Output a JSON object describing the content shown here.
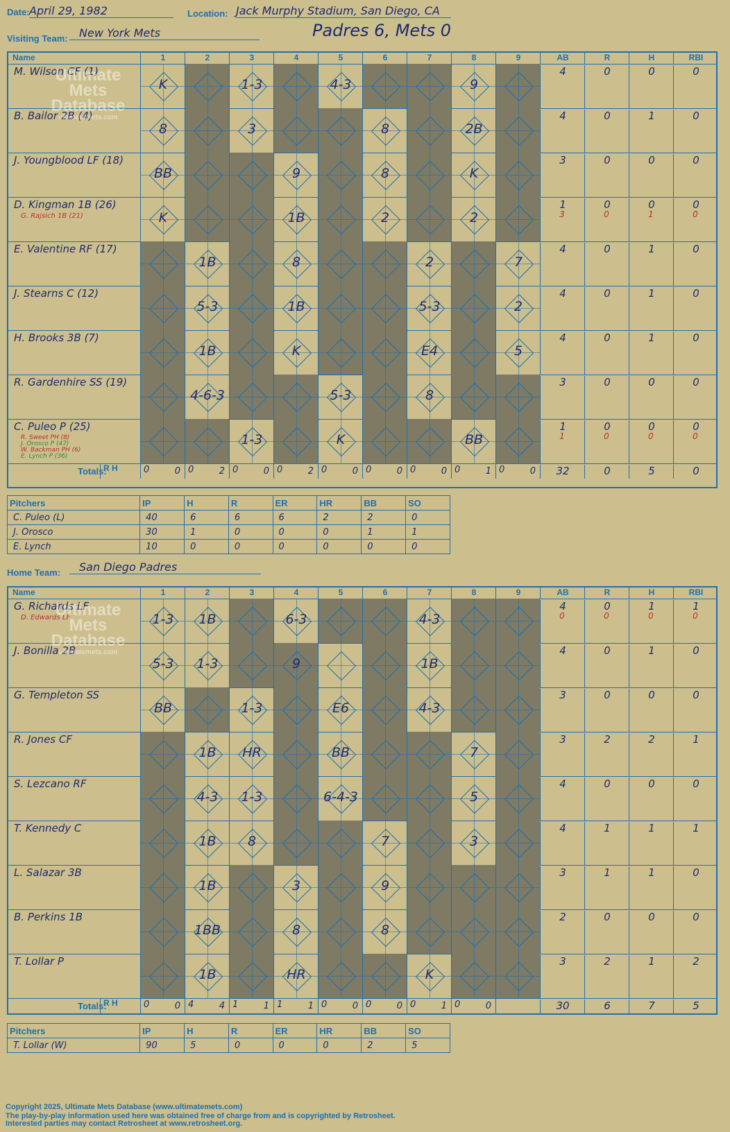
{
  "header": {
    "date_label": "Date:",
    "date": "April 29, 1982",
    "location_label": "Location:",
    "location": "Jack Murphy Stadium, San Diego, CA",
    "visiting_label": "Visiting Team:",
    "visiting_team": "New York Mets",
    "result": "Padres 6, Mets 0",
    "home_label": "Home Team:",
    "home_team": "San Diego Padres"
  },
  "columns": {
    "name": "Name",
    "innings": [
      "1",
      "2",
      "3",
      "4",
      "5",
      "6",
      "7",
      "8",
      "9"
    ],
    "stats": [
      "AB",
      "R",
      "H",
      "RBI"
    ],
    "totals": "Totals:",
    "r": "R",
    "h": "H"
  },
  "visitors": {
    "rows": [
      {
        "name": "M. Wilson CF (1)",
        "sub": "",
        "stats": [
          "4",
          "0",
          "0",
          "0"
        ],
        "substats": []
      },
      {
        "name": "B. Bailor 2B (4)",
        "sub": "",
        "stats": [
          "4",
          "0",
          "1",
          "0"
        ],
        "substats": []
      },
      {
        "name": "J. Youngblood LF (18)",
        "sub": "",
        "stats": [
          "3",
          "0",
          "0",
          "0"
        ],
        "substats": []
      },
      {
        "name": "D. Kingman 1B (26)",
        "sub": "G. Rajsich 1B (21)",
        "stats": [
          "1",
          "0",
          "0",
          "0"
        ],
        "substats": [
          "3",
          "0",
          "1",
          "0"
        ]
      },
      {
        "name": "E. Valentine RF (17)",
        "sub": "",
        "stats": [
          "4",
          "0",
          "1",
          "0"
        ],
        "substats": []
      },
      {
        "name": "J. Stearns C (12)",
        "sub": "",
        "stats": [
          "4",
          "0",
          "1",
          "0"
        ],
        "substats": []
      },
      {
        "name": "H. Brooks 3B (7)",
        "sub": "",
        "stats": [
          "4",
          "0",
          "1",
          "0"
        ],
        "substats": []
      },
      {
        "name": "R. Gardenhire SS (19)",
        "sub": "",
        "stats": [
          "3",
          "0",
          "0",
          "0"
        ],
        "substats": []
      },
      {
        "name": "C. Puleo P (25)",
        "sub": "R. Sweet PH (8) | J. Orosco P (47) | W. Backman PH (6) | E. Lynch P (36)",
        "stats": [
          "1",
          "0",
          "0",
          "0"
        ],
        "substats": [
          "1",
          "0",
          "0",
          "0"
        ]
      }
    ],
    "plays": [
      [
        "K",
        "",
        "1-3",
        "",
        "4-3",
        "",
        "",
        "9",
        ""
      ],
      [
        "8",
        "",
        "3",
        "",
        "",
        "8",
        "",
        "2B",
        ""
      ],
      [
        "BB",
        "",
        "",
        "9",
        "",
        "8",
        "",
        "K",
        ""
      ],
      [
        "K",
        "",
        "",
        "1B",
        "",
        "2",
        "",
        "2",
        ""
      ],
      [
        "",
        "1B",
        "",
        "8",
        "",
        "",
        "2",
        "",
        "7"
      ],
      [
        "",
        "5-3",
        "",
        "1B",
        "",
        "",
        "5-3",
        "",
        "2"
      ],
      [
        "",
        "1B",
        "",
        "K",
        "",
        "",
        "E4",
        "",
        "5"
      ],
      [
        "",
        "4-6-3",
        "",
        "",
        "5-3",
        "",
        "8",
        "",
        ""
      ],
      [
        "",
        "",
        "1-3",
        "",
        "K",
        "",
        "",
        "BB",
        ""
      ]
    ],
    "totals_rh": [
      [
        "0",
        "0"
      ],
      [
        "0",
        "2"
      ],
      [
        "0",
        "0"
      ],
      [
        "0",
        "2"
      ],
      [
        "0",
        "0"
      ],
      [
        "0",
        "0"
      ],
      [
        "0",
        "0"
      ],
      [
        "0",
        "1"
      ],
      [
        "0",
        "0"
      ]
    ],
    "totals_stats": [
      "32",
      "0",
      "5",
      "0"
    ],
    "pitchers": [
      {
        "name": "C. Puleo (L)",
        "ip": "40",
        "h": "6",
        "r": "6",
        "er": "6",
        "hr": "2",
        "bb": "2",
        "so": "0"
      },
      {
        "name": "J. Orosco",
        "ip": "30",
        "h": "1",
        "r": "0",
        "er": "0",
        "hr": "0",
        "bb": "1",
        "so": "1"
      },
      {
        "name": "E. Lynch",
        "ip": "10",
        "h": "0",
        "r": "0",
        "er": "0",
        "hr": "0",
        "bb": "0",
        "so": "0"
      }
    ]
  },
  "home": {
    "rows": [
      {
        "name": "G. Richards LF",
        "sub": "D. Edwards LF",
        "stats": [
          "4",
          "0",
          "1",
          "1"
        ],
        "substats": [
          "0",
          "0",
          "0",
          "0"
        ]
      },
      {
        "name": "J. Bonilla 2B",
        "sub": "",
        "stats": [
          "4",
          "0",
          "1",
          "0"
        ],
        "substats": []
      },
      {
        "name": "G. Templeton SS",
        "sub": "",
        "stats": [
          "3",
          "0",
          "0",
          "0"
        ],
        "substats": []
      },
      {
        "name": "R. Jones CF",
        "sub": "",
        "stats": [
          "3",
          "2",
          "2",
          "1"
        ],
        "substats": []
      },
      {
        "name": "S. Lezcano RF",
        "sub": "",
        "stats": [
          "4",
          "0",
          "0",
          "0"
        ],
        "substats": []
      },
      {
        "name": "T. Kennedy C",
        "sub": "",
        "stats": [
          "4",
          "1",
          "1",
          "1"
        ],
        "substats": []
      },
      {
        "name": "L. Salazar 3B",
        "sub": "",
        "stats": [
          "3",
          "1",
          "1",
          "0"
        ],
        "substats": []
      },
      {
        "name": "B. Perkins 1B",
        "sub": "",
        "stats": [
          "2",
          "0",
          "0",
          "0"
        ],
        "substats": []
      },
      {
        "name": "T. Lollar P",
        "sub": "",
        "stats": [
          "3",
          "2",
          "1",
          "2"
        ],
        "substats": []
      }
    ],
    "plays": [
      [
        "1-3",
        "1B",
        "",
        "6-3",
        "",
        "",
        "4-3",
        "",
        ""
      ],
      [
        "5-3",
        "1-3",
        "",
        "9",
        "",
        "",
        "1B",
        "",
        ""
      ],
      [
        "BB",
        "",
        "1-3",
        "",
        "E6",
        "",
        "4-3",
        "",
        ""
      ],
      [
        "",
        "1B",
        "HR",
        "",
        "BB",
        "",
        "",
        "7",
        ""
      ],
      [
        "",
        "4-3",
        "1-3",
        "",
        "6-4-3",
        "",
        "",
        "5",
        ""
      ],
      [
        "",
        "1B",
        "8",
        "",
        "",
        "7",
        "",
        "3",
        ""
      ],
      [
        "",
        "1B",
        "",
        "3",
        "",
        "9",
        "",
        "",
        ""
      ],
      [
        "",
        "1BB",
        "",
        "8",
        "",
        "8",
        "",
        "",
        ""
      ],
      [
        "",
        "1B",
        "",
        "HR",
        "",
        "",
        "K",
        "",
        ""
      ]
    ],
    "totals_rh": [
      [
        "0",
        "0"
      ],
      [
        "4",
        "4"
      ],
      [
        "1",
        "1"
      ],
      [
        "1",
        "1"
      ],
      [
        "0",
        "0"
      ],
      [
        "0",
        "0"
      ],
      [
        "0",
        "1"
      ],
      [
        "0",
        "0"
      ],
      [
        "",
        ""
      ]
    ],
    "totals_stats": [
      "30",
      "6",
      "7",
      "5"
    ],
    "pitchers": [
      {
        "name": "T. Lollar (W)",
        "ip": "90",
        "h": "5",
        "r": "0",
        "er": "0",
        "hr": "0",
        "bb": "2",
        "so": "5"
      }
    ]
  },
  "pitcher_columns": [
    "Pitchers",
    "IP",
    "H",
    "R",
    "ER",
    "HR",
    "BB",
    "SO"
  ],
  "watermark": {
    "line1": "Ultimate",
    "line2": "Mets",
    "line3": "Database",
    "url": "ultimatemets.com"
  },
  "footer": {
    "line1": "Copyright 2025, Ultimate Mets Database (www.ultimatemets.com)",
    "line2": "The play-by-play information used here was obtained free of charge from and is copyrighted by Retrosheet.",
    "line3": "Interested parties may contact Retrosheet at www.retrosheet.org."
  },
  "colors": {
    "paper": "#cdbf8d",
    "ink": "#1f6fae",
    "dark_cell": "#7e7a64",
    "pen": "#1c2a6e",
    "red": "#b43030"
  }
}
